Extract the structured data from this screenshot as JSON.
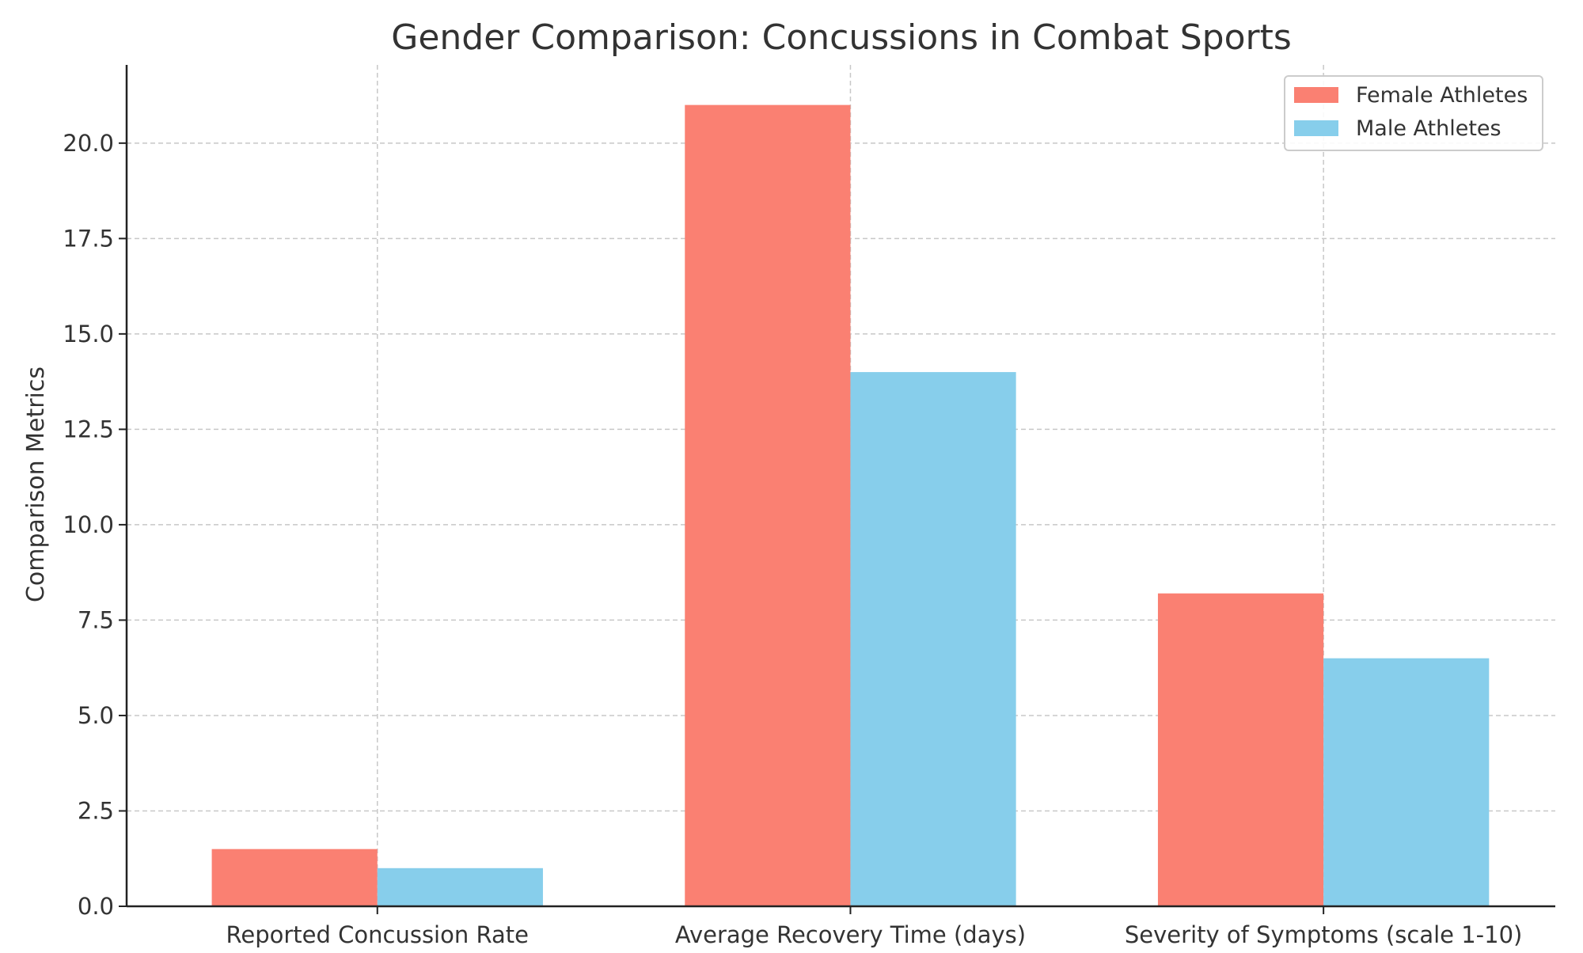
{
  "chart_data": {
    "type": "bar",
    "title": "Gender Comparison: Concussions in Combat Sports",
    "xlabel": "",
    "ylabel": "Comparison Metrics",
    "categories": [
      "Reported Concussion Rate",
      "Average Recovery Time (days)",
      "Severity of Symptoms (scale 1-10)"
    ],
    "series": [
      {
        "name": "Female Athletes",
        "color": "#FA8072",
        "values": [
          1.5,
          21.0,
          8.2
        ]
      },
      {
        "name": "Male Athletes",
        "color": "#87CEEB",
        "values": [
          1.0,
          14.0,
          6.5
        ]
      }
    ],
    "ylim": [
      0,
      22.05
    ],
    "yticks": [
      "0.0",
      "2.5",
      "5.0",
      "7.5",
      "10.0",
      "12.5",
      "15.0",
      "17.5",
      "20.0"
    ],
    "grid": true,
    "legend_position": "top-right"
  }
}
